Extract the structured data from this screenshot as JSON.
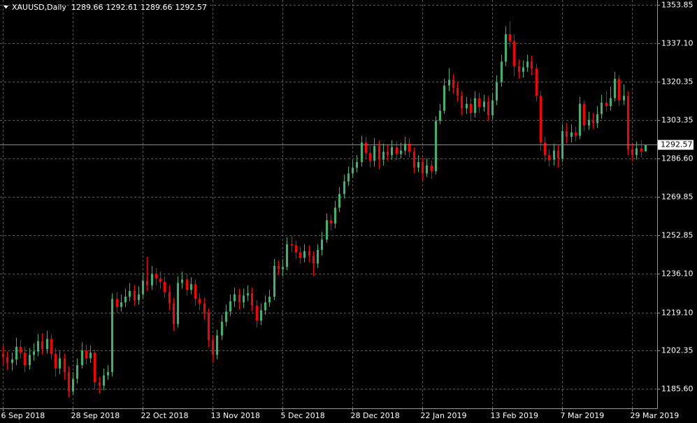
{
  "chart_data": {
    "type": "candlestick",
    "symbol": "XAUUSD,Daily",
    "up_color": "#3cb371",
    "down_color": "#ff0000",
    "last_price_color": "#6f8fb5",
    "grid": true,
    "ylim": [
      1177.07,
      1355.98
    ],
    "yticks": [
      1353.85,
      {
        "value": 1337.1,
        "label": "1337.10"
      },
      1320.35,
      1303.35,
      {
        "value": 1286.6,
        "label": "1286.60"
      },
      1269.85,
      1252.85,
      {
        "value": 1236.1,
        "label": "1236.10"
      },
      {
        "value": 1219.1,
        "label": "1219.10"
      },
      1202.35,
      {
        "value": 1185.6,
        "label": "1185.60"
      }
    ],
    "categories": [
      "6 Sep 2018",
      null,
      null,
      null,
      null,
      null,
      null,
      null,
      null,
      null,
      null,
      null,
      null,
      null,
      null,
      null,
      "28 Sep 2018",
      null,
      null,
      null,
      null,
      null,
      null,
      null,
      null,
      null,
      null,
      null,
      null,
      null,
      null,
      null,
      "22 Oct 2018",
      null,
      null,
      null,
      null,
      null,
      null,
      null,
      null,
      null,
      null,
      null,
      null,
      null,
      null,
      null,
      "13 Nov 2018",
      null,
      null,
      null,
      null,
      null,
      null,
      null,
      null,
      null,
      null,
      null,
      null,
      null,
      null,
      null,
      "5 Dec 2018",
      null,
      null,
      null,
      null,
      null,
      null,
      null,
      null,
      null,
      null,
      null,
      null,
      null,
      null,
      null,
      "28 Dec 2018",
      null,
      null,
      null,
      null,
      null,
      null,
      null,
      null,
      null,
      null,
      null,
      null,
      null,
      null,
      null,
      "22 Jan 2019",
      null,
      null,
      null,
      null,
      null,
      null,
      null,
      null,
      null,
      null,
      null,
      null,
      null,
      null,
      null,
      "13 Feb 2019",
      null,
      null,
      null,
      null,
      null,
      null,
      null,
      null,
      null,
      null,
      null,
      null,
      null,
      null,
      null,
      "7 Mar 2019",
      null,
      null,
      null,
      null,
      null,
      null,
      null,
      null,
      null,
      null,
      null,
      null,
      null,
      null,
      null,
      "29 Mar 2019",
      null,
      null,
      null
    ],
    "open": [
      1201.0,
      1199.5,
      1197.0,
      1198.5,
      1204.0,
      1201.5,
      1196.0,
      1200.5,
      1202.0,
      1206.5,
      1203.0,
      1207.5,
      1201.0,
      1194.5,
      1199.0,
      1193.0,
      1184.5,
      1190.0,
      1196.0,
      1202.5,
      1199.0,
      1201.5,
      1188.5,
      1187.0,
      1191.5,
      1193.0,
      1225.0,
      1221.5,
      1223.5,
      1226.0,
      1228.5,
      1224.5,
      1227.0,
      1233.0,
      1231.0,
      1236.0,
      1234.0,
      1232.5,
      1228.0,
      1223.0,
      1214.0,
      1232.0,
      1233.5,
      1229.0,
      1231.5,
      1225.0,
      1223.0,
      1219.0,
      1207.0,
      1200.5,
      1209.0,
      1215.0,
      1219.5,
      1224.0,
      1227.0,
      1223.5,
      1226.5,
      1227.5,
      1222.0,
      1215.5,
      1220.0,
      1223.5,
      1226.0,
      1239.5,
      1238.0,
      1239.0,
      1249.0,
      1248.5,
      1245.5,
      1243.0,
      1246.0,
      1244.0,
      1240.5,
      1246.5,
      1251.0,
      1259.5,
      1258.0,
      1265.0,
      1271.0,
      1276.5,
      1280.0,
      1282.5,
      1285.0,
      1293.5,
      1289.0,
      1285.5,
      1292.0,
      1286.0,
      1289.5,
      1288.0,
      1291.5,
      1288.5,
      1290.0,
      1293.0,
      1289.5,
      1282.5,
      1285.0,
      1280.0,
      1283.5,
      1281.0,
      1303.0,
      1307.5,
      1318.5,
      1321.0,
      1317.5,
      1314.0,
      1308.5,
      1310.5,
      1306.5,
      1313.0,
      1309.0,
      1311.5,
      1305.5,
      1312.0,
      1320.0,
      1329.0,
      1341.0,
      1338.0,
      1327.0,
      1324.5,
      1326.5,
      1329.0,
      1326.0,
      1314.0,
      1293.5,
      1288.0,
      1286.0,
      1290.0,
      1286.5,
      1298.5,
      1296.0,
      1298.0,
      1296.5,
      1310.5,
      1301.0,
      1303.5,
      1302.0,
      1306.0,
      1311.0,
      1309.5,
      1313.0,
      1321.5,
      1312.0,
      1314.0,
      1290.5,
      1288.0,
      1291.0,
      1289.66
    ],
    "high": [
      1204.5,
      1202.0,
      1201.5,
      1208.0,
      1207.0,
      1204.0,
      1203.5,
      1205.5,
      1209.5,
      1210.0,
      1211.0,
      1209.5,
      1203.5,
      1202.0,
      1201.0,
      1195.5,
      1193.0,
      1199.0,
      1206.0,
      1205.0,
      1204.5,
      1203.0,
      1191.0,
      1194.5,
      1196.0,
      1227.5,
      1228.0,
      1227.0,
      1229.5,
      1232.0,
      1231.0,
      1230.5,
      1236.5,
      1243.5,
      1239.5,
      1238.5,
      1237.0,
      1235.0,
      1231.0,
      1225.5,
      1235.0,
      1237.0,
      1236.0,
      1234.5,
      1233.5,
      1227.5,
      1225.5,
      1221.0,
      1209.0,
      1211.5,
      1218.0,
      1222.5,
      1227.0,
      1230.0,
      1229.5,
      1229.5,
      1231.0,
      1230.0,
      1224.5,
      1223.0,
      1226.5,
      1229.0,
      1242.5,
      1242.0,
      1242.5,
      1252.0,
      1252.5,
      1250.5,
      1248.0,
      1249.0,
      1248.5,
      1246.0,
      1249.0,
      1254.5,
      1262.5,
      1262.0,
      1268.0,
      1274.0,
      1279.5,
      1283.0,
      1286.0,
      1288.0,
      1296.5,
      1296.0,
      1292.0,
      1295.5,
      1294.5,
      1293.0,
      1292.5,
      1294.5,
      1294.0,
      1293.5,
      1296.0,
      1295.5,
      1291.5,
      1288.0,
      1287.0,
      1286.5,
      1285.5,
      1305.0,
      1310.5,
      1321.5,
      1326.0,
      1323.5,
      1320.0,
      1316.0,
      1313.5,
      1313.0,
      1316.0,
      1315.5,
      1314.5,
      1314.0,
      1315.0,
      1323.0,
      1332.0,
      1344.5,
      1346.5,
      1341.0,
      1330.0,
      1329.5,
      1332.0,
      1331.5,
      1328.0,
      1316.0,
      1296.0,
      1290.5,
      1293.0,
      1292.5,
      1301.5,
      1302.0,
      1301.5,
      1300.5,
      1313.5,
      1312.0,
      1307.0,
      1306.5,
      1309.5,
      1314.5,
      1316.0,
      1318.0,
      1324.5,
      1323.0,
      1319.0,
      1316.0,
      1293.0,
      1294.0,
      1294.5,
      1292.61
    ],
    "low": [
      1196.5,
      1194.0,
      1193.5,
      1196.0,
      1199.0,
      1193.0,
      1194.0,
      1198.0,
      1200.0,
      1200.5,
      1201.0,
      1198.5,
      1191.0,
      1192.0,
      1189.5,
      1182.0,
      1183.0,
      1188.0,
      1194.5,
      1196.5,
      1197.0,
      1185.5,
      1183.5,
      1185.0,
      1189.5,
      1191.0,
      1219.0,
      1219.5,
      1221.5,
      1224.0,
      1222.0,
      1222.5,
      1225.0,
      1228.5,
      1229.0,
      1231.0,
      1229.5,
      1225.5,
      1220.0,
      1211.0,
      1212.5,
      1229.5,
      1226.5,
      1227.0,
      1222.0,
      1220.0,
      1216.0,
      1204.0,
      1197.0,
      1198.5,
      1207.0,
      1213.0,
      1217.5,
      1221.5,
      1220.5,
      1221.0,
      1224.0,
      1219.5,
      1212.5,
      1213.5,
      1218.0,
      1221.5,
      1224.5,
      1235.5,
      1235.0,
      1237.5,
      1245.5,
      1242.5,
      1240.5,
      1241.0,
      1241.0,
      1235.0,
      1238.5,
      1244.0,
      1249.5,
      1255.0,
      1256.0,
      1263.0,
      1269.0,
      1274.5,
      1278.0,
      1280.5,
      1283.0,
      1286.5,
      1282.5,
      1283.0,
      1282.0,
      1283.5,
      1285.5,
      1286.0,
      1286.0,
      1286.5,
      1288.0,
      1287.0,
      1280.0,
      1280.5,
      1277.0,
      1278.5,
      1277.5,
      1279.5,
      1301.5,
      1306.0,
      1316.0,
      1315.0,
      1311.5,
      1305.5,
      1306.0,
      1303.0,
      1304.5,
      1306.5,
      1307.0,
      1303.0,
      1303.5,
      1310.0,
      1318.0,
      1327.0,
      1335.0,
      1322.5,
      1321.5,
      1322.0,
      1324.5,
      1323.0,
      1311.5,
      1290.0,
      1285.0,
      1283.0,
      1283.5,
      1282.5,
      1285.0,
      1293.0,
      1293.5,
      1294.0,
      1295.0,
      1298.5,
      1299.0,
      1299.5,
      1300.0,
      1304.0,
      1307.0,
      1307.5,
      1311.5,
      1309.5,
      1310.0,
      1288.0,
      1285.5,
      1286.0,
      1287.0,
      1289.66
    ],
    "close": [
      1199.5,
      1197.0,
      1198.5,
      1204.0,
      1201.5,
      1196.0,
      1200.5,
      1202.0,
      1206.5,
      1203.0,
      1207.5,
      1201.0,
      1194.5,
      1199.0,
      1193.0,
      1184.5,
      1190.0,
      1196.0,
      1202.5,
      1199.0,
      1201.5,
      1188.5,
      1187.0,
      1191.5,
      1193.0,
      1225.0,
      1221.5,
      1223.5,
      1226.0,
      1228.5,
      1224.5,
      1227.0,
      1233.0,
      1231.0,
      1236.0,
      1234.0,
      1232.5,
      1228.0,
      1223.0,
      1214.0,
      1232.0,
      1233.5,
      1229.0,
      1231.5,
      1225.0,
      1223.0,
      1219.0,
      1207.0,
      1200.5,
      1209.0,
      1215.0,
      1219.5,
      1224.0,
      1227.0,
      1223.5,
      1226.5,
      1227.5,
      1222.0,
      1215.5,
      1220.0,
      1223.5,
      1226.0,
      1239.5,
      1238.0,
      1239.0,
      1249.0,
      1248.5,
      1245.5,
      1243.0,
      1246.0,
      1244.0,
      1240.5,
      1246.5,
      1251.0,
      1259.5,
      1258.0,
      1265.0,
      1271.0,
      1276.5,
      1280.0,
      1282.5,
      1285.0,
      1293.5,
      1289.0,
      1285.5,
      1292.0,
      1286.0,
      1289.5,
      1288.0,
      1291.5,
      1288.5,
      1290.0,
      1293.0,
      1289.5,
      1282.5,
      1285.0,
      1280.0,
      1283.5,
      1281.0,
      1303.0,
      1307.5,
      1318.5,
      1321.0,
      1317.5,
      1314.0,
      1308.5,
      1310.5,
      1306.5,
      1313.0,
      1309.0,
      1311.5,
      1305.5,
      1312.0,
      1320.0,
      1329.0,
      1341.0,
      1338.0,
      1327.0,
      1324.5,
      1326.5,
      1329.0,
      1326.0,
      1314.0,
      1293.5,
      1288.0,
      1286.0,
      1290.0,
      1286.5,
      1298.5,
      1296.0,
      1298.0,
      1296.5,
      1310.5,
      1301.0,
      1303.5,
      1302.0,
      1306.0,
      1311.0,
      1309.5,
      1313.0,
      1321.5,
      1312.0,
      1314.0,
      1290.5,
      1288.0,
      1291.0,
      1289.66,
      1292.57
    ]
  }
}
